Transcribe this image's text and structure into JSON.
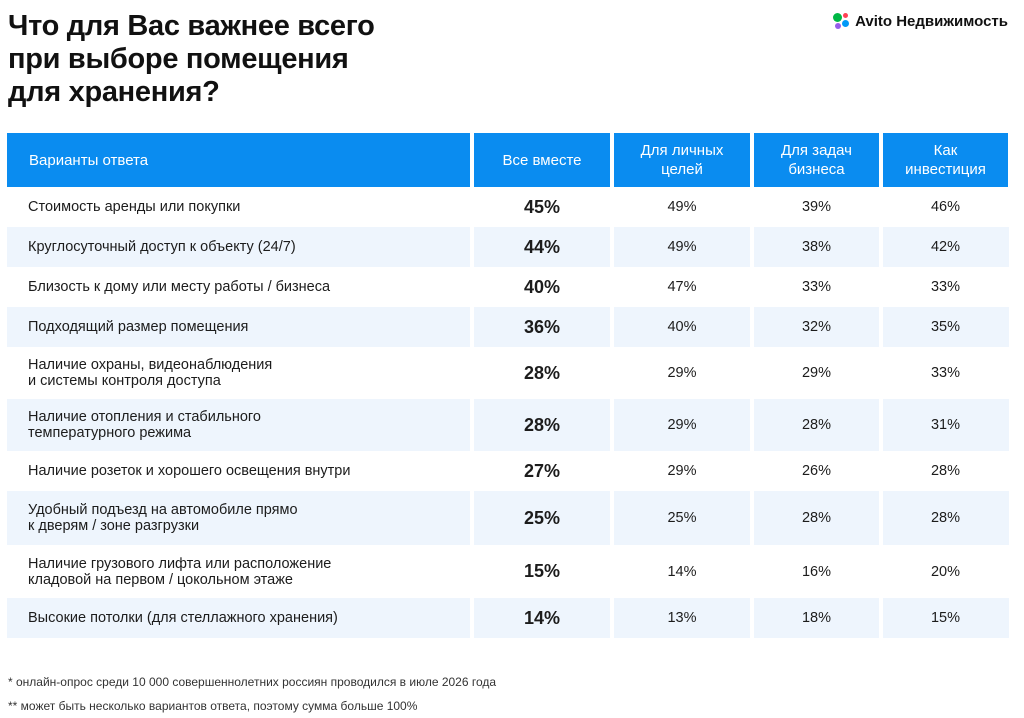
{
  "title": "Что для Вас важнее всего\nпри выборе помещения\nдля хранения?",
  "brand": {
    "name": "Avito Недвижимость",
    "icon": "avito-dots-icon",
    "colors": [
      "#00b845",
      "#0099f7",
      "#ff4053",
      "#965eeb"
    ]
  },
  "header_color": "#0a8cf0",
  "chart_data": {
    "type": "table",
    "columns": [
      "Варианты ответа",
      "Все вместе",
      "Для личных\nцелей",
      "Для задач\nбизнеса",
      "Как\nинвестиция"
    ],
    "rows": [
      {
        "label": "Стоимость аренды или покупки",
        "values": [
          "45%",
          "49%",
          "39%",
          "46%"
        ]
      },
      {
        "label": "Круглосуточный доступ к объекту (24/7)",
        "values": [
          "44%",
          "49%",
          "38%",
          "42%"
        ]
      },
      {
        "label": "Близость к дому или месту работы / бизнеса",
        "values": [
          "40%",
          "47%",
          "33%",
          "33%"
        ]
      },
      {
        "label": "Подходящий размер помещения",
        "values": [
          "36%",
          "40%",
          "32%",
          "35%"
        ]
      },
      {
        "label": "Наличие охраны, видеонаблюдения\nи системы контроля доступа",
        "values": [
          "28%",
          "29%",
          "29%",
          "33%"
        ]
      },
      {
        "label": "Наличие отопления и стабильного\nтемпературного режима",
        "values": [
          "28%",
          "29%",
          "28%",
          "31%"
        ]
      },
      {
        "label": "Наличие розеток и хорошего освещения внутри",
        "values": [
          "27%",
          "29%",
          "26%",
          "28%"
        ]
      },
      {
        "label": "Удобный подъезд на автомобиле прямо\nк дверям / зоне разгрузки",
        "values": [
          "25%",
          "25%",
          "28%",
          "28%"
        ]
      },
      {
        "label": "Наличие грузового лифта или расположение\nкладовой на первом / цокольном этаже",
        "values": [
          "15%",
          "14%",
          "16%",
          "20%"
        ]
      },
      {
        "label": "Высокие потолки (для стеллажного хранения)",
        "values": [
          "14%",
          "13%",
          "18%",
          "15%"
        ]
      }
    ]
  },
  "footnotes": [
    "* онлайн-опрос среди 10 000 совершеннолетних россиян проводился в июле 2026 года",
    "** может быть несколько вариантов ответа, поэтому сумма больше 100%"
  ]
}
